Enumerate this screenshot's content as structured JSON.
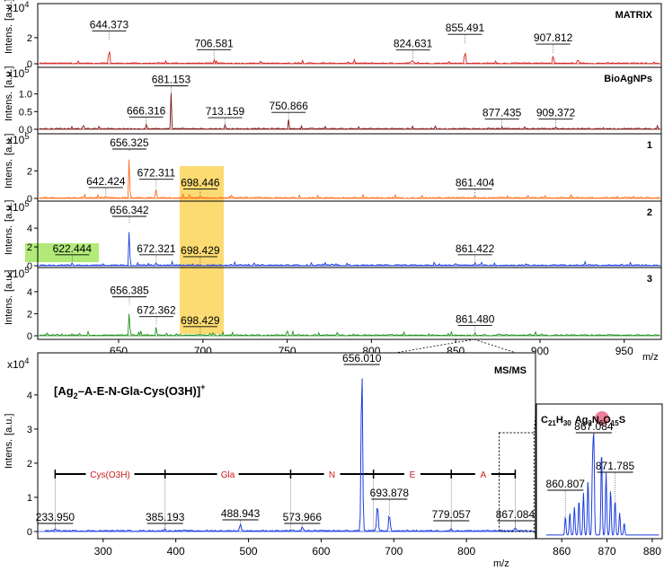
{
  "figure": {
    "stack_xlabel": "m/z",
    "msms_xlabel": "m/z",
    "ylabel": "Intens.",
    "yunit": "[a.u.]",
    "exp4": "x10",
    "exp4_sup": "4",
    "exp5": "x10",
    "exp5_sup": "5",
    "zoom_x_ticks": [
      "860",
      "870",
      "880"
    ],
    "formula": {
      "c": "C",
      "c_n": "21",
      "h": "H",
      "h_n": "30",
      "ag": "Ag",
      "ag_n": "2",
      "n": "N",
      "n_n": "6",
      "o": "O",
      "o_n": "15",
      "s": "S"
    },
    "ion": {
      "open": "[Ag",
      "sub": "2",
      "mid": "–A-E-N-Gla-Cys(O3H)]",
      "sup": "+"
    },
    "sequence": [
      "Cys(O3H)",
      "Gla",
      "N",
      "E",
      "A"
    ]
  },
  "colors": {
    "matrix": "#d42020",
    "bioagnps": "#7a1010",
    "s1": "#ff6a1a",
    "s2": "#1c3ee0",
    "s3": "#1e8f1e",
    "msms": "#1c3ee0",
    "highlight_yellow": "#fbd55a",
    "highlight_green": "#a8e86a",
    "seq_text": "#cc1a1a",
    "ag_circle": "#e86a86"
  },
  "chart_data": [
    {
      "type": "line",
      "title": "MATRIX",
      "xlabel": "m/z",
      "ylabel": "Intens. [a.u.]",
      "y_multiplier": "x10^4",
      "xlim": [
        602,
        972
      ],
      "ylim": [
        0,
        4.2
      ],
      "yticks": [
        0,
        2
      ],
      "xticks": [
        650,
        700,
        750,
        800,
        850,
        900,
        950
      ],
      "peaks": [
        {
          "x": 644.373,
          "y": 1.75
        },
        {
          "x": 706.581,
          "y": 0.32
        },
        {
          "x": 824.631,
          "y": 0.3
        },
        {
          "x": 855.491,
          "y": 1.5
        },
        {
          "x": 907.812,
          "y": 0.75
        }
      ]
    },
    {
      "type": "line",
      "title": "BioAgNPs",
      "xlabel": "m/z",
      "ylabel": "Intens. [a.u.]",
      "y_multiplier": "x10^5",
      "xlim": [
        602,
        972
      ],
      "ylim": [
        0,
        1.6
      ],
      "yticks": [
        0,
        0.5,
        1
      ],
      "xticks": [
        650,
        700,
        750,
        800,
        850,
        900,
        950
      ],
      "peaks": [
        {
          "x": 666.316,
          "y": 0.12
        },
        {
          "x": 681.153,
          "y": 1.0
        },
        {
          "x": 713.159,
          "y": 0.1
        },
        {
          "x": 750.866,
          "y": 0.25
        },
        {
          "x": 877.435,
          "y": 0.06
        },
        {
          "x": 909.372,
          "y": 0.06
        }
      ]
    },
    {
      "type": "line",
      "title": "1",
      "xlabel": "m/z",
      "ylabel": "Intens. [a.u.]",
      "y_multiplier": "x10^5",
      "xlim": [
        602,
        972
      ],
      "ylim": [
        0,
        4.3
      ],
      "yticks": [
        0,
        2
      ],
      "xticks": [
        650,
        700,
        750,
        800,
        850,
        900,
        950
      ],
      "peaks": [
        {
          "x": 642.424,
          "y": 0.2
        },
        {
          "x": 656.325,
          "y": 3.4
        },
        {
          "x": 672.311,
          "y": 0.8
        },
        {
          "x": 698.446,
          "y": 0.1
        },
        {
          "x": 861.404,
          "y": 0.1
        }
      ]
    },
    {
      "type": "line",
      "title": "2",
      "xlabel": "m/z",
      "ylabel": "Intens. [a.u.]",
      "y_multiplier": "x10^5",
      "xlim": [
        602,
        972
      ],
      "ylim": [
        0,
        6.3
      ],
      "yticks": [
        0,
        2,
        4
      ],
      "xticks": [
        650,
        700,
        750,
        800,
        850,
        900,
        950
      ],
      "peaks": [
        {
          "x": 622.444,
          "y": 0.3
        },
        {
          "x": 656.342,
          "y": 4.5
        },
        {
          "x": 672.321,
          "y": 0.3
        },
        {
          "x": 698.429,
          "y": 0.1
        },
        {
          "x": 861.422,
          "y": 0.3
        }
      ]
    },
    {
      "type": "line",
      "title": "3",
      "xlabel": "m/z",
      "ylabel": "Intens. [a.u.]",
      "y_multiplier": "x10^5",
      "xlim": [
        602,
        972
      ],
      "ylim": [
        0,
        5.7
      ],
      "yticks": [
        0,
        2,
        4
      ],
      "xticks": [
        650,
        700,
        750,
        800,
        850,
        900,
        950
      ],
      "peaks": [
        {
          "x": 656.385,
          "y": 2.8
        },
        {
          "x": 672.362,
          "y": 1.0
        },
        {
          "x": 698.429,
          "y": 0.1
        },
        {
          "x": 861.48,
          "y": 0.2
        }
      ]
    },
    {
      "type": "line",
      "title": "MS/MS",
      "xlabel": "m/z",
      "ylabel": "Intens. [a.u.]",
      "y_multiplier": "x10^4",
      "xlim": [
        210,
        895
      ],
      "ylim": [
        0,
        5.1
      ],
      "yticks": [
        0,
        1,
        2,
        3,
        4
      ],
      "xticks": [
        300,
        400,
        500,
        600,
        700,
        800
      ],
      "peaks": [
        {
          "x": 233.95,
          "y": 0.05
        },
        {
          "x": 385.193,
          "y": 0.05
        },
        {
          "x": 488.943,
          "y": 0.2
        },
        {
          "x": 573.966,
          "y": 0.1
        },
        {
          "x": 656.01,
          "y": 5.0
        },
        {
          "x": 677.5,
          "y": 0.8
        },
        {
          "x": 693.878,
          "y": 0.5
        },
        {
          "x": 779.057,
          "y": 0.05
        },
        {
          "x": 867.084,
          "y": 0.1
        }
      ],
      "fragment_markers": [
        233.95,
        385.193,
        558.0,
        672.0,
        779.057,
        867.084
      ]
    },
    {
      "type": "line",
      "title": "zoom",
      "xlabel": "",
      "ylabel": "",
      "xlim": [
        855,
        882
      ],
      "xticks": [
        860,
        870,
        880
      ],
      "peaks": [
        {
          "x": 860.807,
          "y": 0.18
        },
        {
          "x": 861.8,
          "y": 0.22
        },
        {
          "x": 862.8,
          "y": 0.28
        },
        {
          "x": 863.8,
          "y": 0.35
        },
        {
          "x": 864.8,
          "y": 0.42
        },
        {
          "x": 865.8,
          "y": 0.55
        },
        {
          "x": 866.8,
          "y": 0.68
        },
        {
          "x": 867.084,
          "y": 1.0
        },
        {
          "x": 868.8,
          "y": 0.85
        },
        {
          "x": 869.8,
          "y": 0.62
        },
        {
          "x": 870.8,
          "y": 0.45
        },
        {
          "x": 871.785,
          "y": 0.35
        },
        {
          "x": 872.8,
          "y": 0.22
        },
        {
          "x": 873.8,
          "y": 0.12
        }
      ],
      "labels": [
        {
          "x": 860.807,
          "text": "860.807"
        },
        {
          "x": 867.084,
          "text": "867.084"
        },
        {
          "x": 871.785,
          "text": "871.785"
        }
      ]
    }
  ]
}
